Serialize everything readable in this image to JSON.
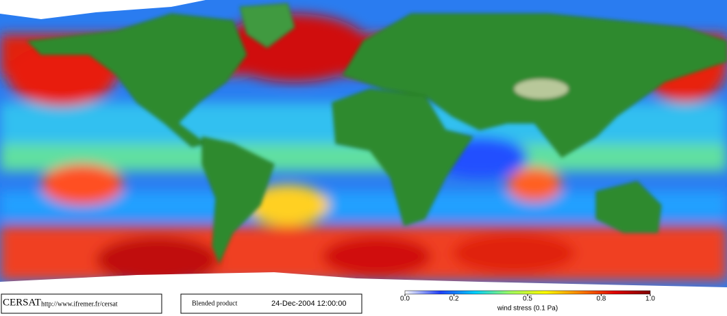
{
  "map": {
    "colorbar": {
      "label": "wind stress (0.1 Pa)",
      "lim": [
        0,
        1
      ],
      "ticks": [
        {
          "value": 0,
          "label": "0.0"
        },
        {
          "value": 0.2,
          "label": "0.2"
        },
        {
          "value": 0.5,
          "label": "0.5"
        },
        {
          "value": 0.8,
          "label": "0.8"
        },
        {
          "value": 1,
          "label": "1.0"
        }
      ],
      "colors": [
        "#ffffff",
        "#2040ff",
        "#00d0ff",
        "#a0ff60",
        "#ffff00",
        "#ff8000",
        "#e00000",
        "#800000"
      ]
    }
  },
  "footer": {
    "logo": "CERSAT",
    "url": "http://www.ifremer.fr/cersat",
    "product": "Blended product",
    "date": "24-Dec-2004 12:00:00"
  }
}
